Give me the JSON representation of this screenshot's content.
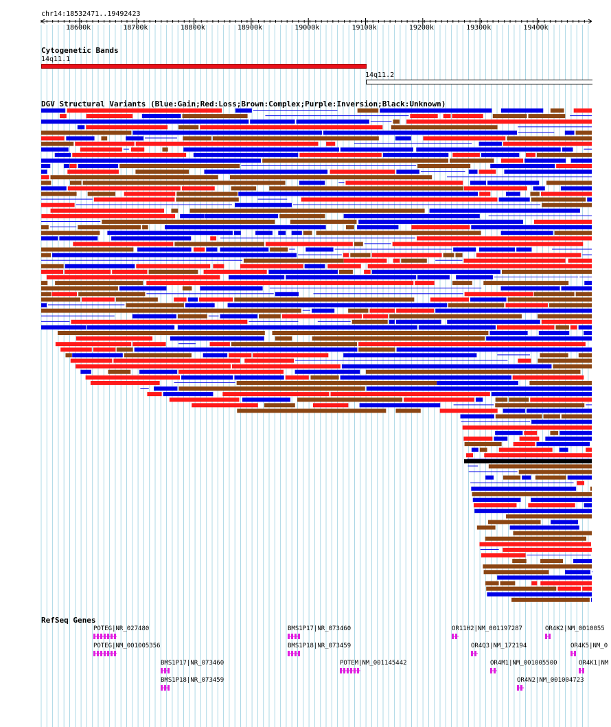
{
  "colors": {
    "gain": "#0000e6",
    "loss": "#ff1a1a",
    "complex": "#8b4513",
    "inversion": "#800080",
    "unknown": "#000000",
    "grid": "#add8e6",
    "gene": "#e020e0",
    "band_red": "#e8101a"
  },
  "ruler": {
    "location": "chr14:18532471..19492423",
    "ticks": [
      "18600k",
      "18700k",
      "18800k",
      "18900k",
      "19000k",
      "19100k",
      "19200k",
      "19300k",
      "19400k"
    ]
  },
  "cytoband": {
    "title": "Cytogenetic Bands",
    "bands": [
      {
        "name": "14q11.1",
        "fill": "red"
      },
      {
        "name": "14q11.2",
        "fill": "white"
      }
    ]
  },
  "dgv": {
    "title": "DGV Structural Variants (Blue:Gain;Red:Loss;Brown:Complex;Purple:Inversion;Black:Unknown)"
  },
  "refseq": {
    "title": "RefSeq Genes",
    "genes": [
      "POTEG|NR_027480",
      "POTEG|NM_001005356",
      "BMS1P17|NR_073460",
      "BMS1P18|NR_073459",
      "BMS1P17|NR_073460",
      "BMS1P18|NR_073459",
      "POTEM|NM_001145442",
      "OR11H2|NM_001197287",
      "OR4Q3|NM_172194",
      "OR4M1|NM_001005500",
      "OR4N2|NM_001004723",
      "OR4K2|NM_0010055",
      "OR4K5|NM_0",
      "OR4K1|NM"
    ]
  }
}
